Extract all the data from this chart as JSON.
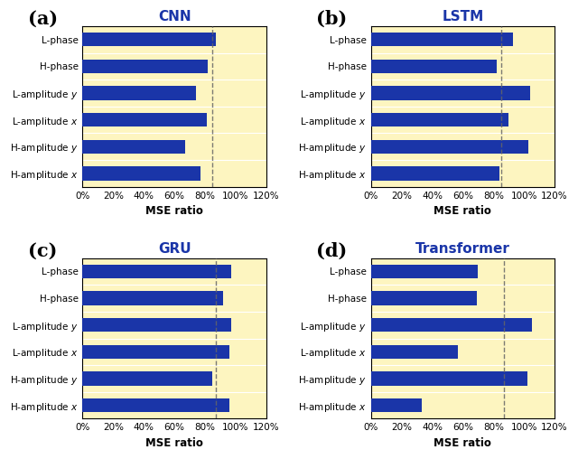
{
  "panels": [
    {
      "label": "(a)",
      "title": "CNN",
      "categories": [
        "L-phase",
        "H-phase",
        "L-amplitude $y$",
        "L-amplitude $x$",
        "H-amplitude $y$",
        "H-amplitude $x$"
      ],
      "values": [
        87,
        82,
        74,
        81,
        67,
        77
      ],
      "vline": 85,
      "xlim": [
        0,
        120
      ]
    },
    {
      "label": "(b)",
      "title": "LSTM",
      "categories": [
        "L-phase",
        "H-phase",
        "L-amplitude $y$",
        "L-amplitude $x$",
        "H-amplitude $y$",
        "H-amplitude $x$"
      ],
      "values": [
        93,
        82,
        104,
        90,
        103,
        84
      ],
      "vline": 85,
      "xlim": [
        0,
        120
      ]
    },
    {
      "label": "(c)",
      "title": "GRU",
      "categories": [
        "L-phase",
        "H-phase",
        "L-amplitude $y$",
        "L-amplitude $x$",
        "H-amplitude $y$",
        "H-amplitude $x$"
      ],
      "values": [
        97,
        92,
        97,
        96,
        85,
        96
      ],
      "vline": 87,
      "xlim": [
        0,
        120
      ]
    },
    {
      "label": "(d)",
      "title": "Transformer",
      "categories": [
        "L-phase",
        "H-phase",
        "L-amplitude $y$",
        "L-amplitude $x$",
        "H-amplitude $y$",
        "H-amplitude $x$"
      ],
      "values": [
        70,
        69,
        105,
        57,
        102,
        33
      ],
      "vline": 87,
      "xlim": [
        0,
        120
      ]
    }
  ],
  "bar_color": "#1a35a8",
  "bg_color": "#fdf5c0",
  "vline_color": "#666666",
  "title_color": "#1a35a8",
  "xlabel": "MSE ratio",
  "xticks": [
    0,
    20,
    40,
    60,
    80,
    100,
    120
  ],
  "xtick_labels": [
    "0%",
    "20%",
    "40%",
    "60%",
    "80%",
    "100%",
    "120%"
  ],
  "bar_height": 0.52,
  "panel_label_fontsize": 15,
  "title_fontsize": 11,
  "tick_fontsize": 7.5,
  "xlabel_fontsize": 8.5
}
